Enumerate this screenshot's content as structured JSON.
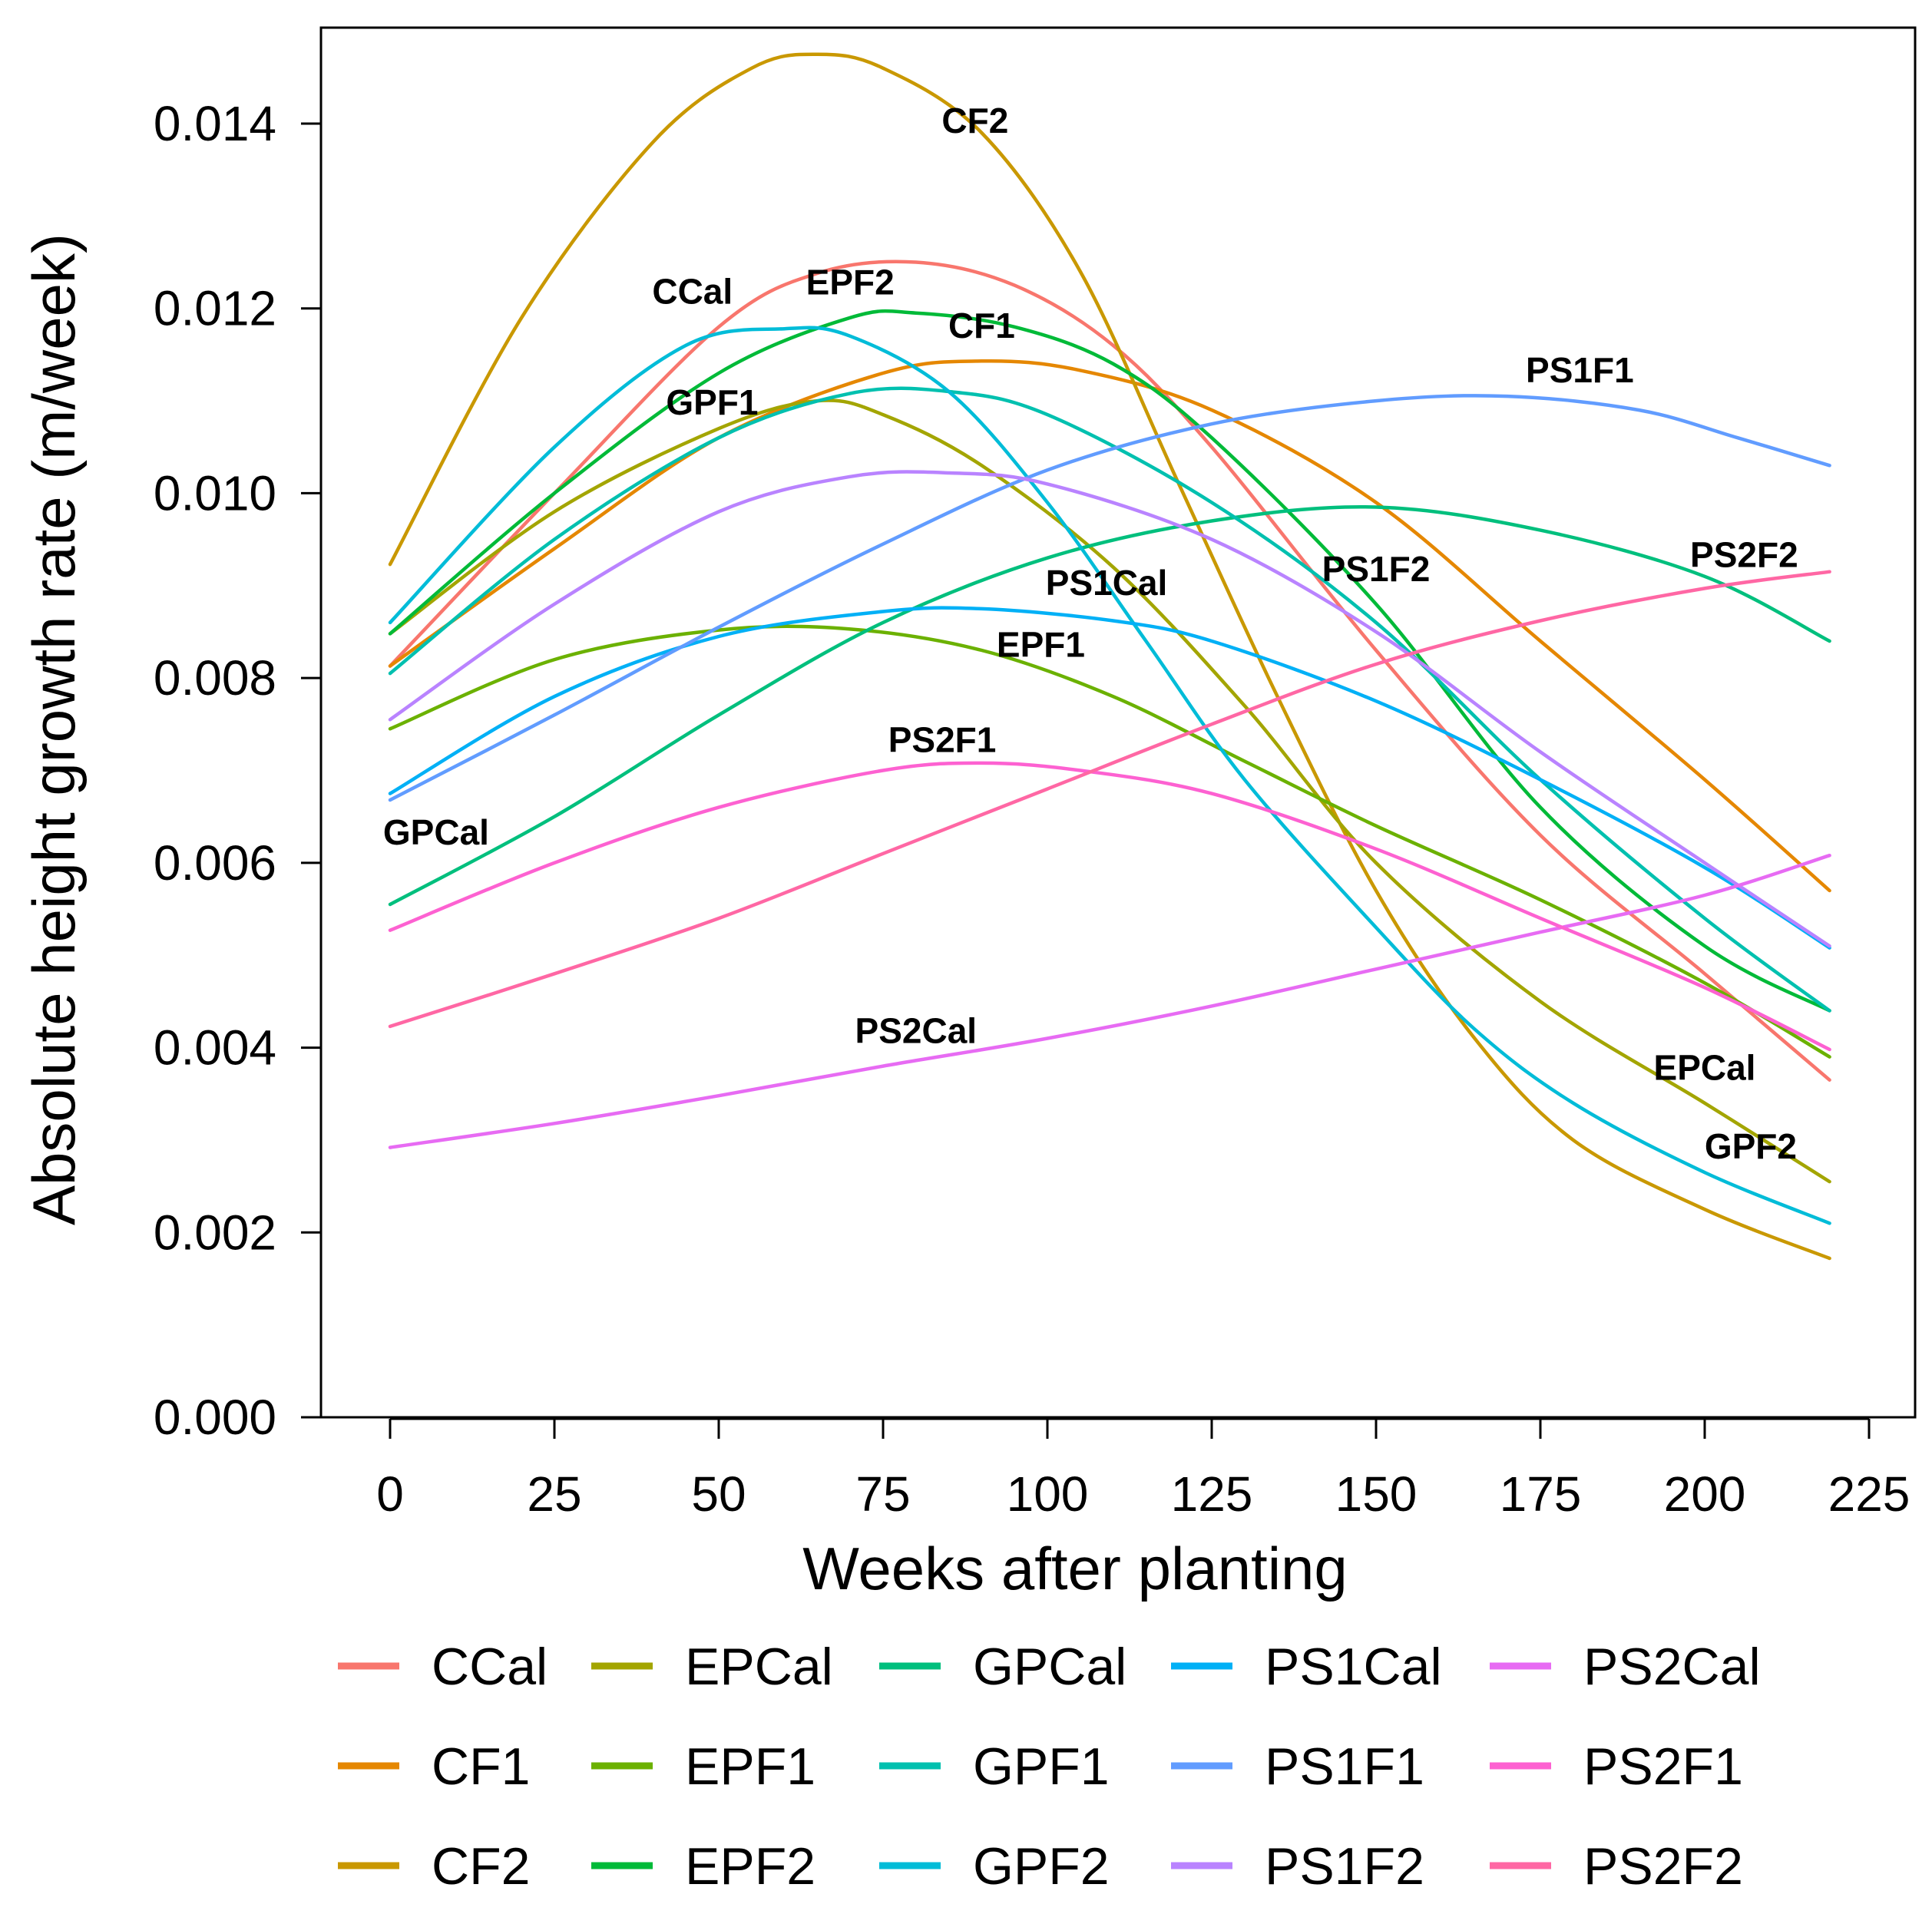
{
  "chart_data": {
    "type": "line",
    "title": "",
    "xlabel": "Weeks after planting",
    "ylabel": "Absolute height growth rate (m/week)",
    "xlim": [
      -10,
      232
    ],
    "ylim": [
      0,
      0.0148
    ],
    "x_ticks": [
      0,
      25,
      50,
      75,
      100,
      125,
      150,
      175,
      200,
      225
    ],
    "x_tick_labels": [
      "0",
      "25",
      "50",
      "75",
      "100",
      "125",
      "150",
      "175",
      "200",
      "225"
    ],
    "y_ticks": [
      0,
      0.002,
      0.004,
      0.006,
      0.008,
      0.01,
      0.012,
      0.014
    ],
    "y_tick_labels": [
      "0.000",
      "0.002",
      "0.004",
      "0.006",
      "0.008",
      "0.010",
      "0.012",
      "0.014"
    ],
    "grid": false,
    "legend_position": "bottom",
    "series": [
      {
        "name": "CCal",
        "color": "#F8766D",
        "label_at": [
          46,
          0.01205
        ],
        "points": [
          [
            0,
            0.00813
          ],
          [
            25,
            0.01
          ],
          [
            50,
            0.0118
          ],
          [
            65,
            0.01238
          ],
          [
            80,
            0.0125
          ],
          [
            95,
            0.01225
          ],
          [
            110,
            0.0116
          ],
          [
            125,
            0.0105
          ],
          [
            150,
            0.0083
          ],
          [
            175,
            0.0063
          ],
          [
            200,
            0.0048
          ],
          [
            219,
            0.00365
          ]
        ]
      },
      {
        "name": "CF1",
        "color": "#E58700",
        "label_at": [
          90,
          0.01168
        ],
        "points": [
          [
            0,
            0.00813
          ],
          [
            25,
            0.0094
          ],
          [
            50,
            0.0106
          ],
          [
            75,
            0.0113
          ],
          [
            90,
            0.01143
          ],
          [
            105,
            0.01133
          ],
          [
            125,
            0.0109
          ],
          [
            150,
            0.0099
          ],
          [
            175,
            0.0084
          ],
          [
            200,
            0.0069
          ],
          [
            219,
            0.0057
          ]
        ]
      },
      {
        "name": "CF2",
        "color": "#C99800",
        "label_at": [
          89,
          0.0139
        ],
        "points": [
          [
            0,
            0.00923
          ],
          [
            20,
            0.0119
          ],
          [
            40,
            0.0138
          ],
          [
            55,
            0.0146
          ],
          [
            65,
            0.01475
          ],
          [
            75,
            0.0146
          ],
          [
            90,
            0.0139
          ],
          [
            105,
            0.0124
          ],
          [
            120,
            0.0101
          ],
          [
            135,
            0.0078
          ],
          [
            150,
            0.0057
          ],
          [
            165,
            0.0041
          ],
          [
            180,
            0.003
          ],
          [
            200,
            0.00225
          ],
          [
            219,
            0.00172
          ]
        ]
      },
      {
        "name": "EPCal",
        "color": "#A3A500",
        "label_at": [
          200,
          0.00365
        ],
        "points": [
          [
            0,
            0.00848
          ],
          [
            25,
            0.0098
          ],
          [
            50,
            0.0107
          ],
          [
            65,
            0.011
          ],
          [
            75,
            0.01085
          ],
          [
            90,
            0.0103
          ],
          [
            110,
            0.0092
          ],
          [
            130,
            0.0077
          ],
          [
            150,
            0.006
          ],
          [
            175,
            0.0045
          ],
          [
            200,
            0.0034
          ],
          [
            219,
            0.00255
          ]
        ]
      },
      {
        "name": "EPF1",
        "color": "#6BB100",
        "label_at": [
          99,
          0.00823
        ],
        "points": [
          [
            0,
            0.00745
          ],
          [
            25,
            0.0082
          ],
          [
            50,
            0.00852
          ],
          [
            70,
            0.00853
          ],
          [
            90,
            0.0083
          ],
          [
            110,
            0.0078
          ],
          [
            130,
            0.0071
          ],
          [
            150,
            0.0064
          ],
          [
            175,
            0.0056
          ],
          [
            200,
            0.0047
          ],
          [
            219,
            0.0039
          ]
        ]
      },
      {
        "name": "EPF2",
        "color": "#00BA38",
        "label_at": [
          70,
          0.01215
        ],
        "points": [
          [
            0,
            0.00848
          ],
          [
            25,
            0.01
          ],
          [
            50,
            0.0113
          ],
          [
            70,
            0.0119
          ],
          [
            80,
            0.01195
          ],
          [
            95,
            0.0118
          ],
          [
            110,
            0.0114
          ],
          [
            125,
            0.0106
          ],
          [
            150,
            0.0088
          ],
          [
            175,
            0.0066
          ],
          [
            200,
            0.0051
          ],
          [
            219,
            0.0044
          ]
        ]
      },
      {
        "name": "GPCal",
        "color": "#00BF7D",
        "label_at": [
          7,
          0.0062
        ],
        "points": [
          [
            0,
            0.00555
          ],
          [
            25,
            0.0065
          ],
          [
            50,
            0.0076
          ],
          [
            75,
            0.0086
          ],
          [
            100,
            0.0093
          ],
          [
            125,
            0.0097
          ],
          [
            150,
            0.00985
          ],
          [
            175,
            0.0096
          ],
          [
            200,
            0.0091
          ],
          [
            219,
            0.0084
          ]
        ]
      },
      {
        "name": "GPF1",
        "color": "#00C0AF",
        "label_at": [
          49,
          0.01085
        ],
        "points": [
          [
            0,
            0.00805
          ],
          [
            25,
            0.0095
          ],
          [
            50,
            0.0106
          ],
          [
            70,
            0.01108
          ],
          [
            85,
            0.0111
          ],
          [
            100,
            0.01085
          ],
          [
            125,
            0.0099
          ],
          [
            150,
            0.0086
          ],
          [
            175,
            0.0069
          ],
          [
            200,
            0.0054
          ],
          [
            219,
            0.0044
          ]
        ]
      },
      {
        "name": "GPF2",
        "color": "#00BCD8",
        "label_at": [
          207,
          0.0028
        ],
        "points": [
          [
            0,
            0.0086
          ],
          [
            25,
            0.0105
          ],
          [
            45,
            0.0116
          ],
          [
            60,
            0.01178
          ],
          [
            70,
            0.0117
          ],
          [
            85,
            0.0111
          ],
          [
            100,
            0.0099
          ],
          [
            115,
            0.0084
          ],
          [
            130,
            0.0069
          ],
          [
            150,
            0.0053
          ],
          [
            165,
            0.0042
          ],
          [
            180,
            0.0034
          ],
          [
            200,
            0.00265
          ],
          [
            219,
            0.0021
          ]
        ]
      },
      {
        "name": "PS1Cal",
        "color": "#00B0F6",
        "label_at": [
          109,
          0.0089
        ],
        "points": [
          [
            0,
            0.00675
          ],
          [
            25,
            0.0078
          ],
          [
            50,
            0.00845
          ],
          [
            75,
            0.00872
          ],
          [
            90,
            0.00875
          ],
          [
            110,
            0.00862
          ],
          [
            125,
            0.0084
          ],
          [
            150,
            0.00775
          ],
          [
            175,
            0.0069
          ],
          [
            200,
            0.00595
          ],
          [
            219,
            0.00508
          ]
        ]
      },
      {
        "name": "PS1F1",
        "color": "#619CFF",
        "label_at": [
          181,
          0.0112
        ],
        "points": [
          [
            0,
            0.00668
          ],
          [
            25,
            0.0076
          ],
          [
            50,
            0.00855
          ],
          [
            75,
            0.00945
          ],
          [
            100,
            0.01025
          ],
          [
            125,
            0.01075
          ],
          [
            150,
            0.011
          ],
          [
            170,
            0.01105
          ],
          [
            190,
            0.0109
          ],
          [
            205,
            0.0106
          ],
          [
            219,
            0.0103
          ]
        ]
      },
      {
        "name": "PS1F2",
        "color": "#B983FF",
        "label_at": [
          150,
          0.00905
        ],
        "points": [
          [
            0,
            0.00755
          ],
          [
            25,
            0.0088
          ],
          [
            50,
            0.0098
          ],
          [
            70,
            0.01018
          ],
          [
            85,
            0.01022
          ],
          [
            100,
            0.0101
          ],
          [
            125,
            0.0095
          ],
          [
            150,
            0.0085
          ],
          [
            175,
            0.0072
          ],
          [
            200,
            0.006
          ],
          [
            219,
            0.0051
          ]
        ]
      },
      {
        "name": "PS2Cal",
        "color": "#E76BF3",
        "label_at": [
          80,
          0.00405
        ],
        "points": [
          [
            0,
            0.00292
          ],
          [
            25,
            0.00318
          ],
          [
            50,
            0.00348
          ],
          [
            75,
            0.0038
          ],
          [
            100,
            0.0041
          ],
          [
            125,
            0.00445
          ],
          [
            150,
            0.00485
          ],
          [
            175,
            0.00525
          ],
          [
            200,
            0.00565
          ],
          [
            219,
            0.00608
          ]
        ]
      },
      {
        "name": "PS2F1",
        "color": "#FD61D1",
        "label_at": [
          84,
          0.0072
        ],
        "points": [
          [
            0,
            0.00527
          ],
          [
            25,
            0.006
          ],
          [
            50,
            0.0066
          ],
          [
            75,
            0.007
          ],
          [
            90,
            0.00708
          ],
          [
            105,
            0.007
          ],
          [
            125,
            0.00675
          ],
          [
            150,
            0.00615
          ],
          [
            175,
            0.0054
          ],
          [
            200,
            0.00465
          ],
          [
            219,
            0.00398
          ]
        ]
      },
      {
        "name": "PS2F2",
        "color": "#FF67A4",
        "label_at": [
          206,
          0.0092
        ],
        "points": [
          [
            0,
            0.00423
          ],
          [
            25,
            0.0048
          ],
          [
            50,
            0.0054
          ],
          [
            75,
            0.0061
          ],
          [
            100,
            0.0068
          ],
          [
            125,
            0.0075
          ],
          [
            150,
            0.00815
          ],
          [
            175,
            0.00862
          ],
          [
            200,
            0.00897
          ],
          [
            219,
            0.00915
          ]
        ]
      }
    ]
  }
}
